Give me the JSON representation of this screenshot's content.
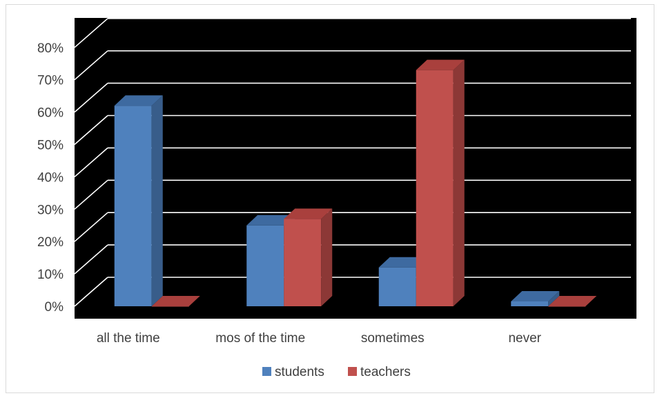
{
  "chart_data": {
    "type": "bar",
    "style": "3d-clustered-column",
    "categories": [
      "all the time",
      "mos of the time",
      "sometimes",
      "never"
    ],
    "series": [
      {
        "name": "students",
        "values": [
          62,
          25,
          12,
          1.5
        ],
        "color": "#4f81bd",
        "side_color": "#385d8a",
        "top_color": "#3e6aa0"
      },
      {
        "name": "teachers",
        "values": [
          0,
          27,
          73,
          0
        ],
        "color": "#c0504d",
        "side_color": "#8c3836",
        "top_color": "#a9403d"
      }
    ],
    "y_ticks": [
      "0%",
      "10%",
      "20%",
      "30%",
      "40%",
      "50%",
      "60%",
      "70%",
      "80%"
    ],
    "ylim": [
      0,
      80
    ],
    "grid": true,
    "plot_background": "#000000",
    "gridline_color": "#ffffff",
    "legend_position": "bottom",
    "title": "",
    "xlabel": "",
    "ylabel": ""
  }
}
